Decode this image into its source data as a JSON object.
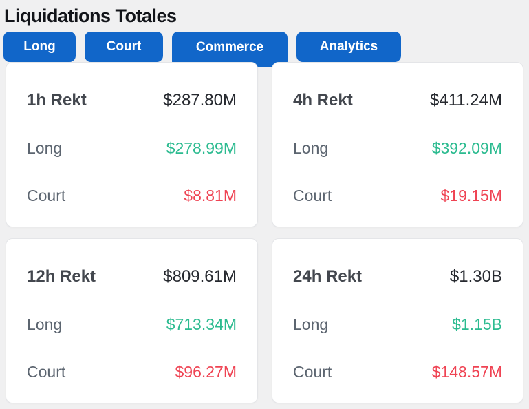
{
  "page": {
    "title": "Liquidations Totales"
  },
  "colors": {
    "tab_blue": "#1166c9",
    "positive_green": "#2cbb90",
    "negative_red": "#ef4353"
  },
  "tabs": {
    "items": [
      {
        "label": "Long"
      },
      {
        "label": "Court"
      },
      {
        "label": "Commerce"
      },
      {
        "label": "Analytics"
      }
    ]
  },
  "cards": [
    {
      "period": "1h Rekt",
      "total": "$287.80M",
      "long_label": "Long",
      "long_value": "$278.99M",
      "short_label": "Court",
      "short_value": "$8.81M"
    },
    {
      "period": "4h Rekt",
      "total": "$411.24M",
      "long_label": "Long",
      "long_value": "$392.09M",
      "short_label": "Court",
      "short_value": "$19.15M"
    },
    {
      "period": "12h Rekt",
      "total": "$809.61M",
      "long_label": "Long",
      "long_value": "$713.34M",
      "short_label": "Court",
      "short_value": "$96.27M"
    },
    {
      "period": "24h Rekt",
      "total": "$1.30B",
      "long_label": "Long",
      "long_value": "$1.15B",
      "short_label": "Court",
      "short_value": "$148.57M"
    }
  ]
}
